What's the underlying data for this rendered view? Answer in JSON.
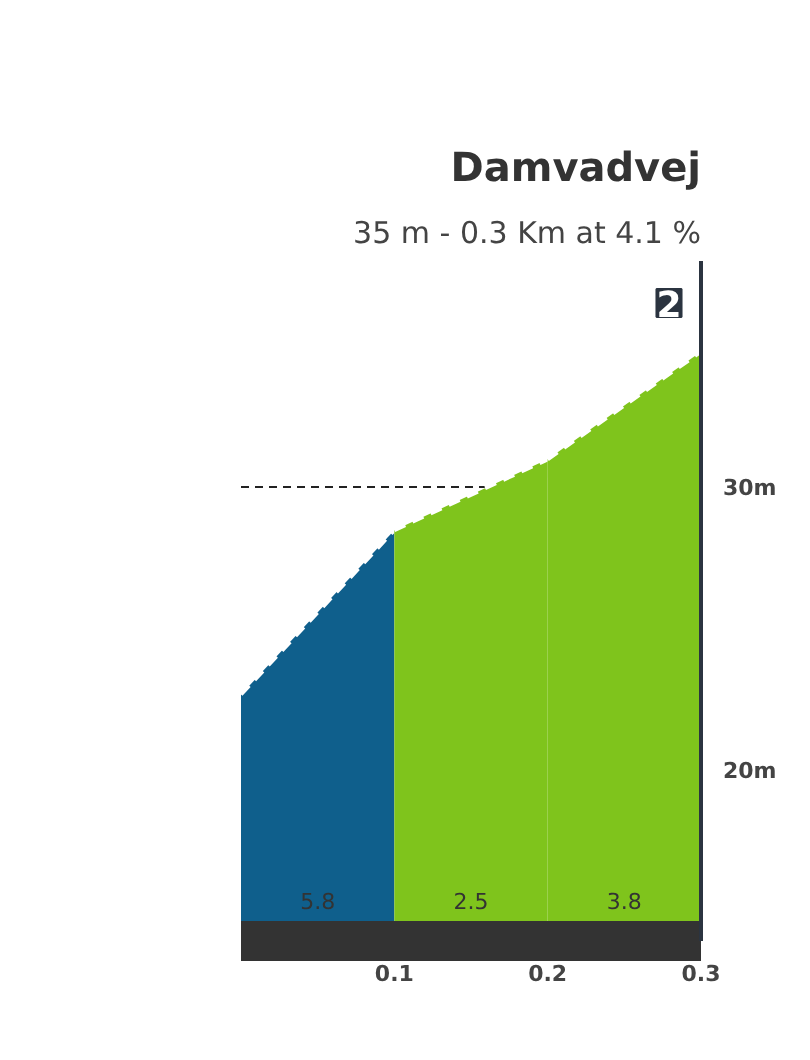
{
  "chart_data": {
    "type": "area",
    "title": "Damvadvej",
    "subtitle": "35 m - 0.3 Km at 4.1 %",
    "series": [
      {
        "x": [
          0,
          0.1
        ],
        "values": [
          22.7,
          28.5
        ],
        "color": "#0f5f8c"
      },
      {
        "x": [
          0.1,
          0.2
        ],
        "values": [
          28.5,
          31.0
        ],
        "color": "#7fc41c"
      },
      {
        "x": [
          0.2,
          0.3
        ],
        "values": [
          31.0,
          34.8
        ],
        "color": "#7fc41c"
      }
    ],
    "annotations": [
      "2",
      "5.8",
      "2.5",
      "3.8"
    ],
    "xlim": [
      0,
      0.3
    ],
    "ylim": [
      14,
      38
    ],
    "xticks": [
      0.1,
      0.2,
      0.3
    ],
    "yticks": [
      {
        "value": 20,
        "label": "20m"
      },
      {
        "value": 30,
        "label": "30m"
      }
    ],
    "grid": "y",
    "line_style": "dashed"
  }
}
